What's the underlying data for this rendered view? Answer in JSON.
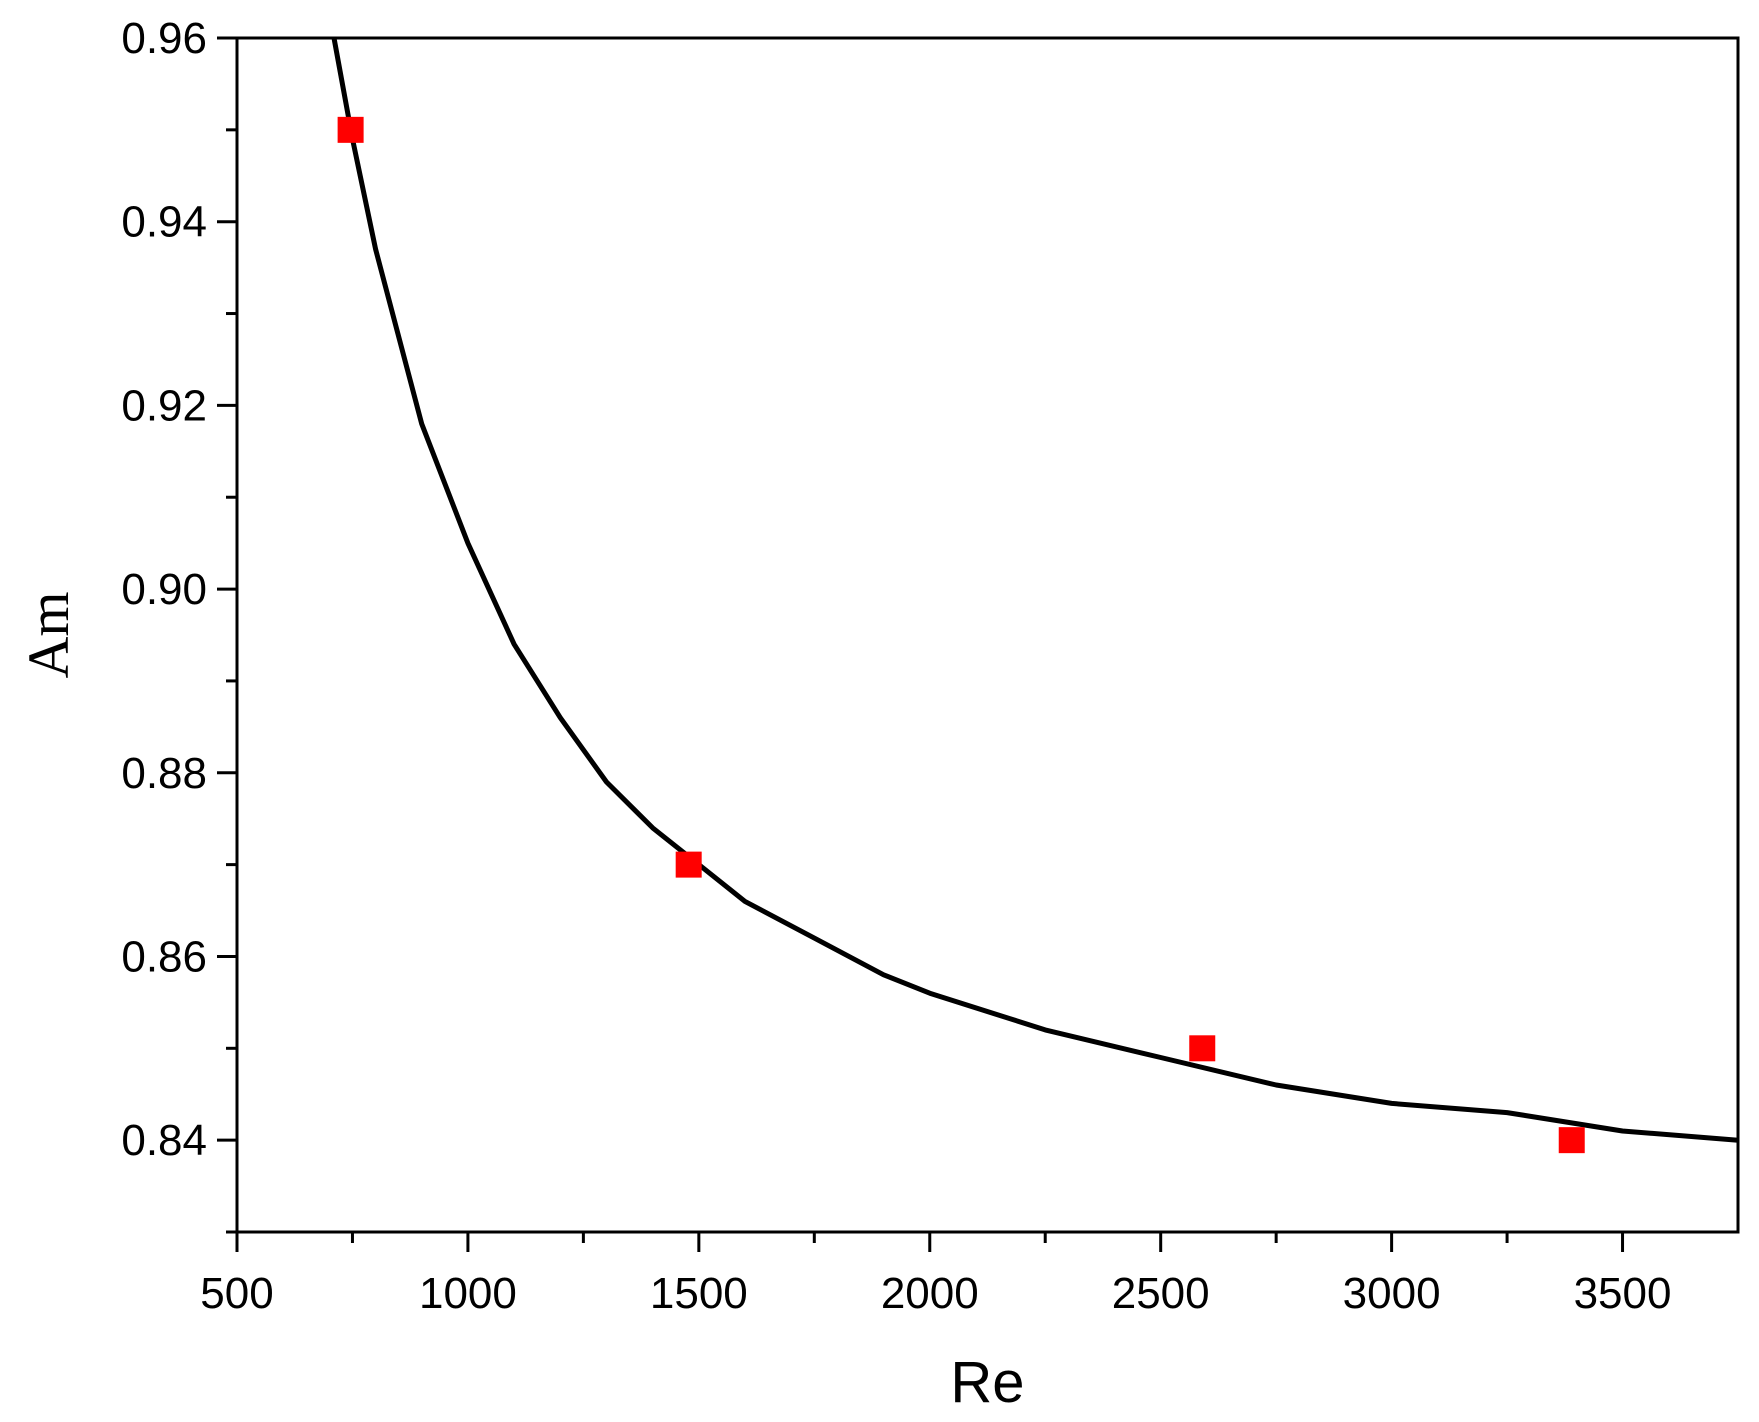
{
  "chart_data": {
    "type": "scatter",
    "title": "",
    "xlabel": "Re",
    "ylabel": "Am",
    "xlim": [
      500,
      3750
    ],
    "ylim": [
      0.83,
      0.96
    ],
    "x_ticks": [
      "500",
      "1000",
      "1500",
      "2000",
      "2500",
      "3000",
      "3500"
    ],
    "y_ticks": [
      "0.84",
      "0.86",
      "0.88",
      "0.90",
      "0.92",
      "0.94",
      "0.96"
    ],
    "grid": false,
    "legend": "none",
    "series": [
      {
        "kind": "scatter",
        "marker": "square",
        "color": "#ff0000",
        "points": [
          {
            "x": 746,
            "y": 0.95
          },
          {
            "x": 1478,
            "y": 0.87
          },
          {
            "x": 2590,
            "y": 0.85
          },
          {
            "x": 3390,
            "y": 0.84
          }
        ]
      },
      {
        "kind": "line",
        "color": "#000000",
        "points": [
          {
            "x": 710,
            "y": 0.96
          },
          {
            "x": 750,
            "y": 0.949
          },
          {
            "x": 800,
            "y": 0.937
          },
          {
            "x": 900,
            "y": 0.918
          },
          {
            "x": 1000,
            "y": 0.905
          },
          {
            "x": 1100,
            "y": 0.894
          },
          {
            "x": 1200,
            "y": 0.886
          },
          {
            "x": 1300,
            "y": 0.879
          },
          {
            "x": 1400,
            "y": 0.874
          },
          {
            "x": 1500,
            "y": 0.87
          },
          {
            "x": 1600,
            "y": 0.866
          },
          {
            "x": 1750,
            "y": 0.862
          },
          {
            "x": 1900,
            "y": 0.858
          },
          {
            "x": 2000,
            "y": 0.856
          },
          {
            "x": 2250,
            "y": 0.852
          },
          {
            "x": 2500,
            "y": 0.849
          },
          {
            "x": 2750,
            "y": 0.846
          },
          {
            "x": 3000,
            "y": 0.844
          },
          {
            "x": 3250,
            "y": 0.843
          },
          {
            "x": 3500,
            "y": 0.841
          },
          {
            "x": 3750,
            "y": 0.84
          }
        ]
      }
    ]
  }
}
